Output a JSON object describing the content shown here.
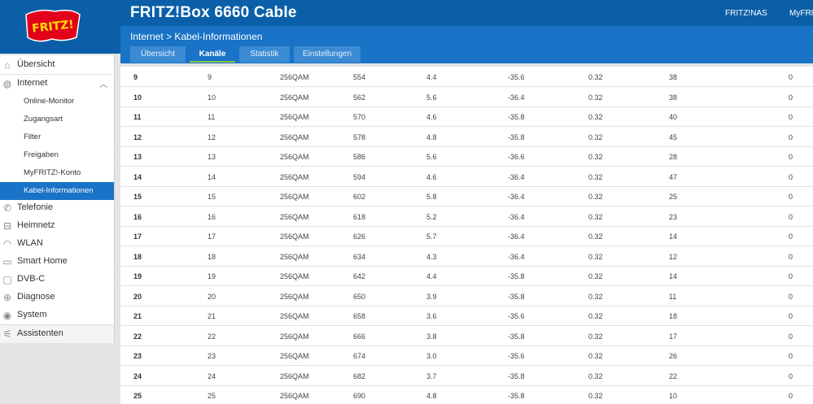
{
  "header": {
    "title": "FRITZ!Box 6660 Cable",
    "links": [
      "FRITZ!NAS",
      "MyFRITZ!"
    ],
    "logo_text": "FRITZ!",
    "colors": {
      "primary": "#0a5fa8",
      "secondary": "#1973c6",
      "accent": "#8bc34a"
    }
  },
  "breadcrumb": "Internet > Kabel-Informationen",
  "tabs": [
    "Übersicht",
    "Kanäle",
    "Statistik",
    "Einstellungen"
  ],
  "sidebar": {
    "items": [
      {
        "label": "Übersicht",
        "icon": "home-icon"
      },
      {
        "label": "Internet",
        "icon": "globe-icon"
      },
      {
        "label": "Online-Monitor",
        "sub": true
      },
      {
        "label": "Zugangsart",
        "sub": true
      },
      {
        "label": "Filter",
        "sub": true
      },
      {
        "label": "Freigaben",
        "sub": true
      },
      {
        "label": "MyFRITZ!-Konto",
        "sub": true
      },
      {
        "label": "Kabel-Informationen",
        "sub": true,
        "active": true
      },
      {
        "label": "Telefonie",
        "icon": "phone-icon"
      },
      {
        "label": "Heimnetz",
        "icon": "network-icon"
      },
      {
        "label": "WLAN",
        "icon": "wifi-icon"
      },
      {
        "label": "Smart Home",
        "icon": "smart-home-icon"
      },
      {
        "label": "DVB-C",
        "icon": "tv-icon"
      },
      {
        "label": "Diagnose",
        "icon": "diagnose-icon"
      },
      {
        "label": "System",
        "icon": "system-icon"
      },
      {
        "label": "Assistenten",
        "icon": "wizard-icon"
      }
    ]
  },
  "table": {
    "rows": [
      [
        "9",
        "9",
        "256QAM",
        "554",
        "4.4",
        "-35.6",
        "0.32",
        "38",
        "0"
      ],
      [
        "10",
        "10",
        "256QAM",
        "562",
        "5.6",
        "-36.4",
        "0.32",
        "38",
        "0"
      ],
      [
        "11",
        "11",
        "256QAM",
        "570",
        "4.6",
        "-35.8",
        "0.32",
        "40",
        "0"
      ],
      [
        "12",
        "12",
        "256QAM",
        "578",
        "4.8",
        "-35.8",
        "0.32",
        "45",
        "0"
      ],
      [
        "13",
        "13",
        "256QAM",
        "586",
        "5.6",
        "-36.6",
        "0.32",
        "28",
        "0"
      ],
      [
        "14",
        "14",
        "256QAM",
        "594",
        "4.6",
        "-36.4",
        "0.32",
        "47",
        "0"
      ],
      [
        "15",
        "15",
        "256QAM",
        "602",
        "5.8",
        "-36.4",
        "0.32",
        "25",
        "0"
      ],
      [
        "16",
        "16",
        "256QAM",
        "618",
        "5.2",
        "-36.4",
        "0.32",
        "23",
        "0"
      ],
      [
        "17",
        "17",
        "256QAM",
        "626",
        "5.7",
        "-36.4",
        "0.32",
        "14",
        "0"
      ],
      [
        "18",
        "18",
        "256QAM",
        "634",
        "4.3",
        "-36.4",
        "0.32",
        "12",
        "0"
      ],
      [
        "19",
        "19",
        "256QAM",
        "642",
        "4.4",
        "-35.8",
        "0.32",
        "14",
        "0"
      ],
      [
        "20",
        "20",
        "256QAM",
        "650",
        "3.9",
        "-35.8",
        "0.32",
        "11",
        "0"
      ],
      [
        "21",
        "21",
        "256QAM",
        "658",
        "3.6",
        "-35.6",
        "0.32",
        "18",
        "0"
      ],
      [
        "22",
        "22",
        "256QAM",
        "666",
        "3.8",
        "-35.8",
        "0.32",
        "17",
        "0"
      ],
      [
        "23",
        "23",
        "256QAM",
        "674",
        "3.0",
        "-35.6",
        "0.32",
        "26",
        "0"
      ],
      [
        "24",
        "24",
        "256QAM",
        "682",
        "3.7",
        "-35.8",
        "0.32",
        "22",
        "0"
      ],
      [
        "25",
        "25",
        "256QAM",
        "690",
        "4.8",
        "-35.8",
        "0.32",
        "10",
        "0"
      ]
    ]
  }
}
